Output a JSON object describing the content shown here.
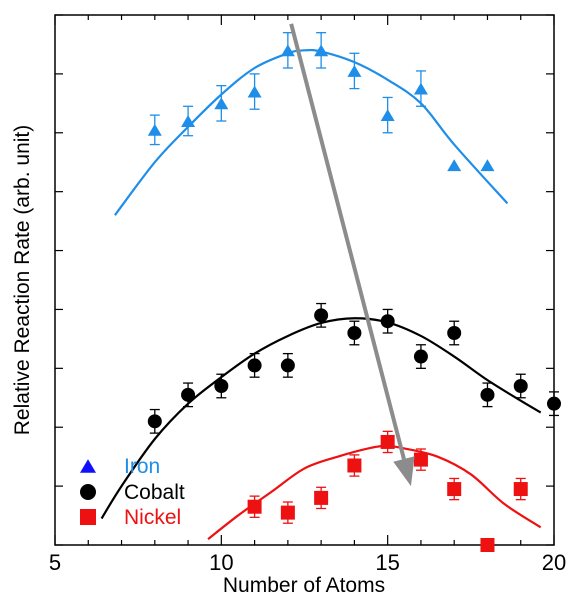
{
  "chart_data": {
    "type": "scatter",
    "xlabel": "Number of Atoms",
    "ylabel": "Relative Reaction Rate (arb. unit)",
    "xlim": [
      5,
      20
    ],
    "ylim": [
      0,
      9
    ],
    "x_ticks": [
      "5",
      "10",
      "15",
      "20"
    ],
    "y_ticks_labeled": false,
    "legend_position": "bottom-left",
    "series": [
      {
        "name": "Iron",
        "color": "#1f8ee8",
        "marker_color": "#1f8ee8",
        "legend_marker_color": "#1010ff",
        "marker": "triangle",
        "points": [
          {
            "x": 8,
            "y": 7.05,
            "err": 0.25
          },
          {
            "x": 9,
            "y": 7.2,
            "err": 0.25
          },
          {
            "x": 10,
            "y": 7.5,
            "err": 0.3
          },
          {
            "x": 11,
            "y": 7.7,
            "err": 0.3
          },
          {
            "x": 12,
            "y": 8.4,
            "err": 0.3
          },
          {
            "x": 13,
            "y": 8.4,
            "err": 0.3
          },
          {
            "x": 14,
            "y": 8.05,
            "err": 0.3
          },
          {
            "x": 15,
            "y": 7.3,
            "err": 0.3
          },
          {
            "x": 16,
            "y": 7.75,
            "err": 0.3
          },
          {
            "x": 17,
            "y": 6.45,
            "err": 0
          },
          {
            "x": 18,
            "y": 6.45,
            "err": 0
          }
        ],
        "fit": [
          [
            6.8,
            5.6
          ],
          [
            8,
            6.5
          ],
          [
            9,
            7.1
          ],
          [
            10,
            7.65
          ],
          [
            11,
            8.1
          ],
          [
            12,
            8.35
          ],
          [
            12.5,
            8.4
          ],
          [
            13,
            8.38
          ],
          [
            14,
            8.2
          ],
          [
            15,
            7.9
          ],
          [
            16,
            7.5
          ],
          [
            17,
            6.8
          ],
          [
            18.6,
            5.8
          ]
        ]
      },
      {
        "name": "Cobalt",
        "color": "#000000",
        "marker_color": "#000000",
        "legend_marker_color": "#000000",
        "marker": "circle",
        "points": [
          {
            "x": 8,
            "y": 2.1,
            "err": 0.2
          },
          {
            "x": 9,
            "y": 2.55,
            "err": 0.2
          },
          {
            "x": 10,
            "y": 2.7,
            "err": 0.2
          },
          {
            "x": 11,
            "y": 3.05,
            "err": 0.2
          },
          {
            "x": 12,
            "y": 3.05,
            "err": 0.2
          },
          {
            "x": 13,
            "y": 3.9,
            "err": 0.2
          },
          {
            "x": 14,
            "y": 3.6,
            "err": 0.2
          },
          {
            "x": 15,
            "y": 3.8,
            "err": 0.2
          },
          {
            "x": 16,
            "y": 3.2,
            "err": 0.2
          },
          {
            "x": 17,
            "y": 3.6,
            "err": 0.2
          },
          {
            "x": 18,
            "y": 2.55,
            "err": 0.2
          },
          {
            "x": 19,
            "y": 2.7,
            "err": 0.2
          },
          {
            "x": 20,
            "y": 2.4,
            "err": 0.2
          }
        ],
        "fit": [
          [
            6.4,
            0.45
          ],
          [
            7,
            1.0
          ],
          [
            8,
            1.8
          ],
          [
            9,
            2.4
          ],
          [
            10,
            2.85
          ],
          [
            11,
            3.25
          ],
          [
            12,
            3.55
          ],
          [
            13,
            3.77
          ],
          [
            14,
            3.85
          ],
          [
            15,
            3.78
          ],
          [
            16,
            3.55
          ],
          [
            17,
            3.2
          ],
          [
            18,
            2.8
          ],
          [
            19,
            2.45
          ],
          [
            19.6,
            2.25
          ]
        ]
      },
      {
        "name": "Nickel",
        "color": "#ee1111",
        "marker_color": "#ee1111",
        "legend_marker_color": "#ee1111",
        "marker": "square",
        "points": [
          {
            "x": 11,
            "y": 0.65,
            "err": 0.18
          },
          {
            "x": 12,
            "y": 0.55,
            "err": 0.18
          },
          {
            "x": 13,
            "y": 0.8,
            "err": 0.18
          },
          {
            "x": 14,
            "y": 1.35,
            "err": 0.18
          },
          {
            "x": 15,
            "y": 1.75,
            "err": 0.18
          },
          {
            "x": 16,
            "y": 1.45,
            "err": 0.18
          },
          {
            "x": 17,
            "y": 0.95,
            "err": 0.18
          },
          {
            "x": 18,
            "y": 0.0,
            "err": 0
          },
          {
            "x": 19,
            "y": 0.95,
            "err": 0.18
          }
        ],
        "fit": [
          [
            9.6,
            0.1
          ],
          [
            10.5,
            0.5
          ],
          [
            11.5,
            0.9
          ],
          [
            12.5,
            1.3
          ],
          [
            13.5,
            1.5
          ],
          [
            14.5,
            1.65
          ],
          [
            15,
            1.68
          ],
          [
            15.5,
            1.64
          ],
          [
            16.5,
            1.5
          ],
          [
            17.5,
            1.2
          ],
          [
            18.5,
            0.7
          ],
          [
            19.6,
            0.3
          ]
        ]
      }
    ],
    "annotations": [
      {
        "type": "arrow",
        "color": "#8c8c8c",
        "from": [
          12.1,
          8.85
        ],
        "to": [
          15.7,
          1.0
        ]
      }
    ]
  }
}
